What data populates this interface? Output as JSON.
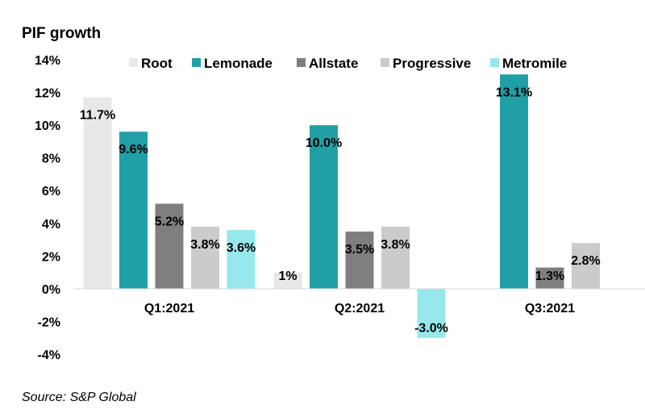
{
  "chart_data": {
    "type": "bar",
    "title": "PIF growth",
    "source": "Source: S&P Global",
    "categories": [
      "Q1:2021",
      "Q2:2021",
      "Q3:2021"
    ],
    "ylim": [
      -4,
      14
    ],
    "yticks": [
      14,
      12,
      10,
      8,
      6,
      4,
      2,
      0,
      -2,
      -4
    ],
    "ytick_labels": [
      "14%",
      "12%",
      "10%",
      "8%",
      "6%",
      "4%",
      "2%",
      "0%",
      "-2%",
      "-4%"
    ],
    "legend_position": "top",
    "grid": false,
    "series": [
      {
        "name": "Root",
        "color": "#e8e8e8",
        "values": [
          11.7,
          1.0,
          null
        ],
        "labels": [
          "11.7%",
          "1%",
          ""
        ]
      },
      {
        "name": "Lemonade",
        "color": "#20a0a6",
        "values": [
          9.6,
          10.0,
          13.1
        ],
        "labels": [
          "9.6%",
          "10.0%",
          "13.1%"
        ]
      },
      {
        "name": "Allstate",
        "color": "#7f7f7f",
        "values": [
          5.2,
          3.5,
          1.3
        ],
        "labels": [
          "5.2%",
          "3.5%",
          "1.3%"
        ]
      },
      {
        "name": "Progressive",
        "color": "#cbcbcb",
        "values": [
          3.8,
          3.8,
          2.8
        ],
        "labels": [
          "3.8%",
          "3.8%",
          "2.8%"
        ]
      },
      {
        "name": "Metromile",
        "color": "#96e8ec",
        "values": [
          3.6,
          -3.0,
          null
        ],
        "labels": [
          "3.6%",
          "-3.0%",
          ""
        ]
      }
    ]
  }
}
